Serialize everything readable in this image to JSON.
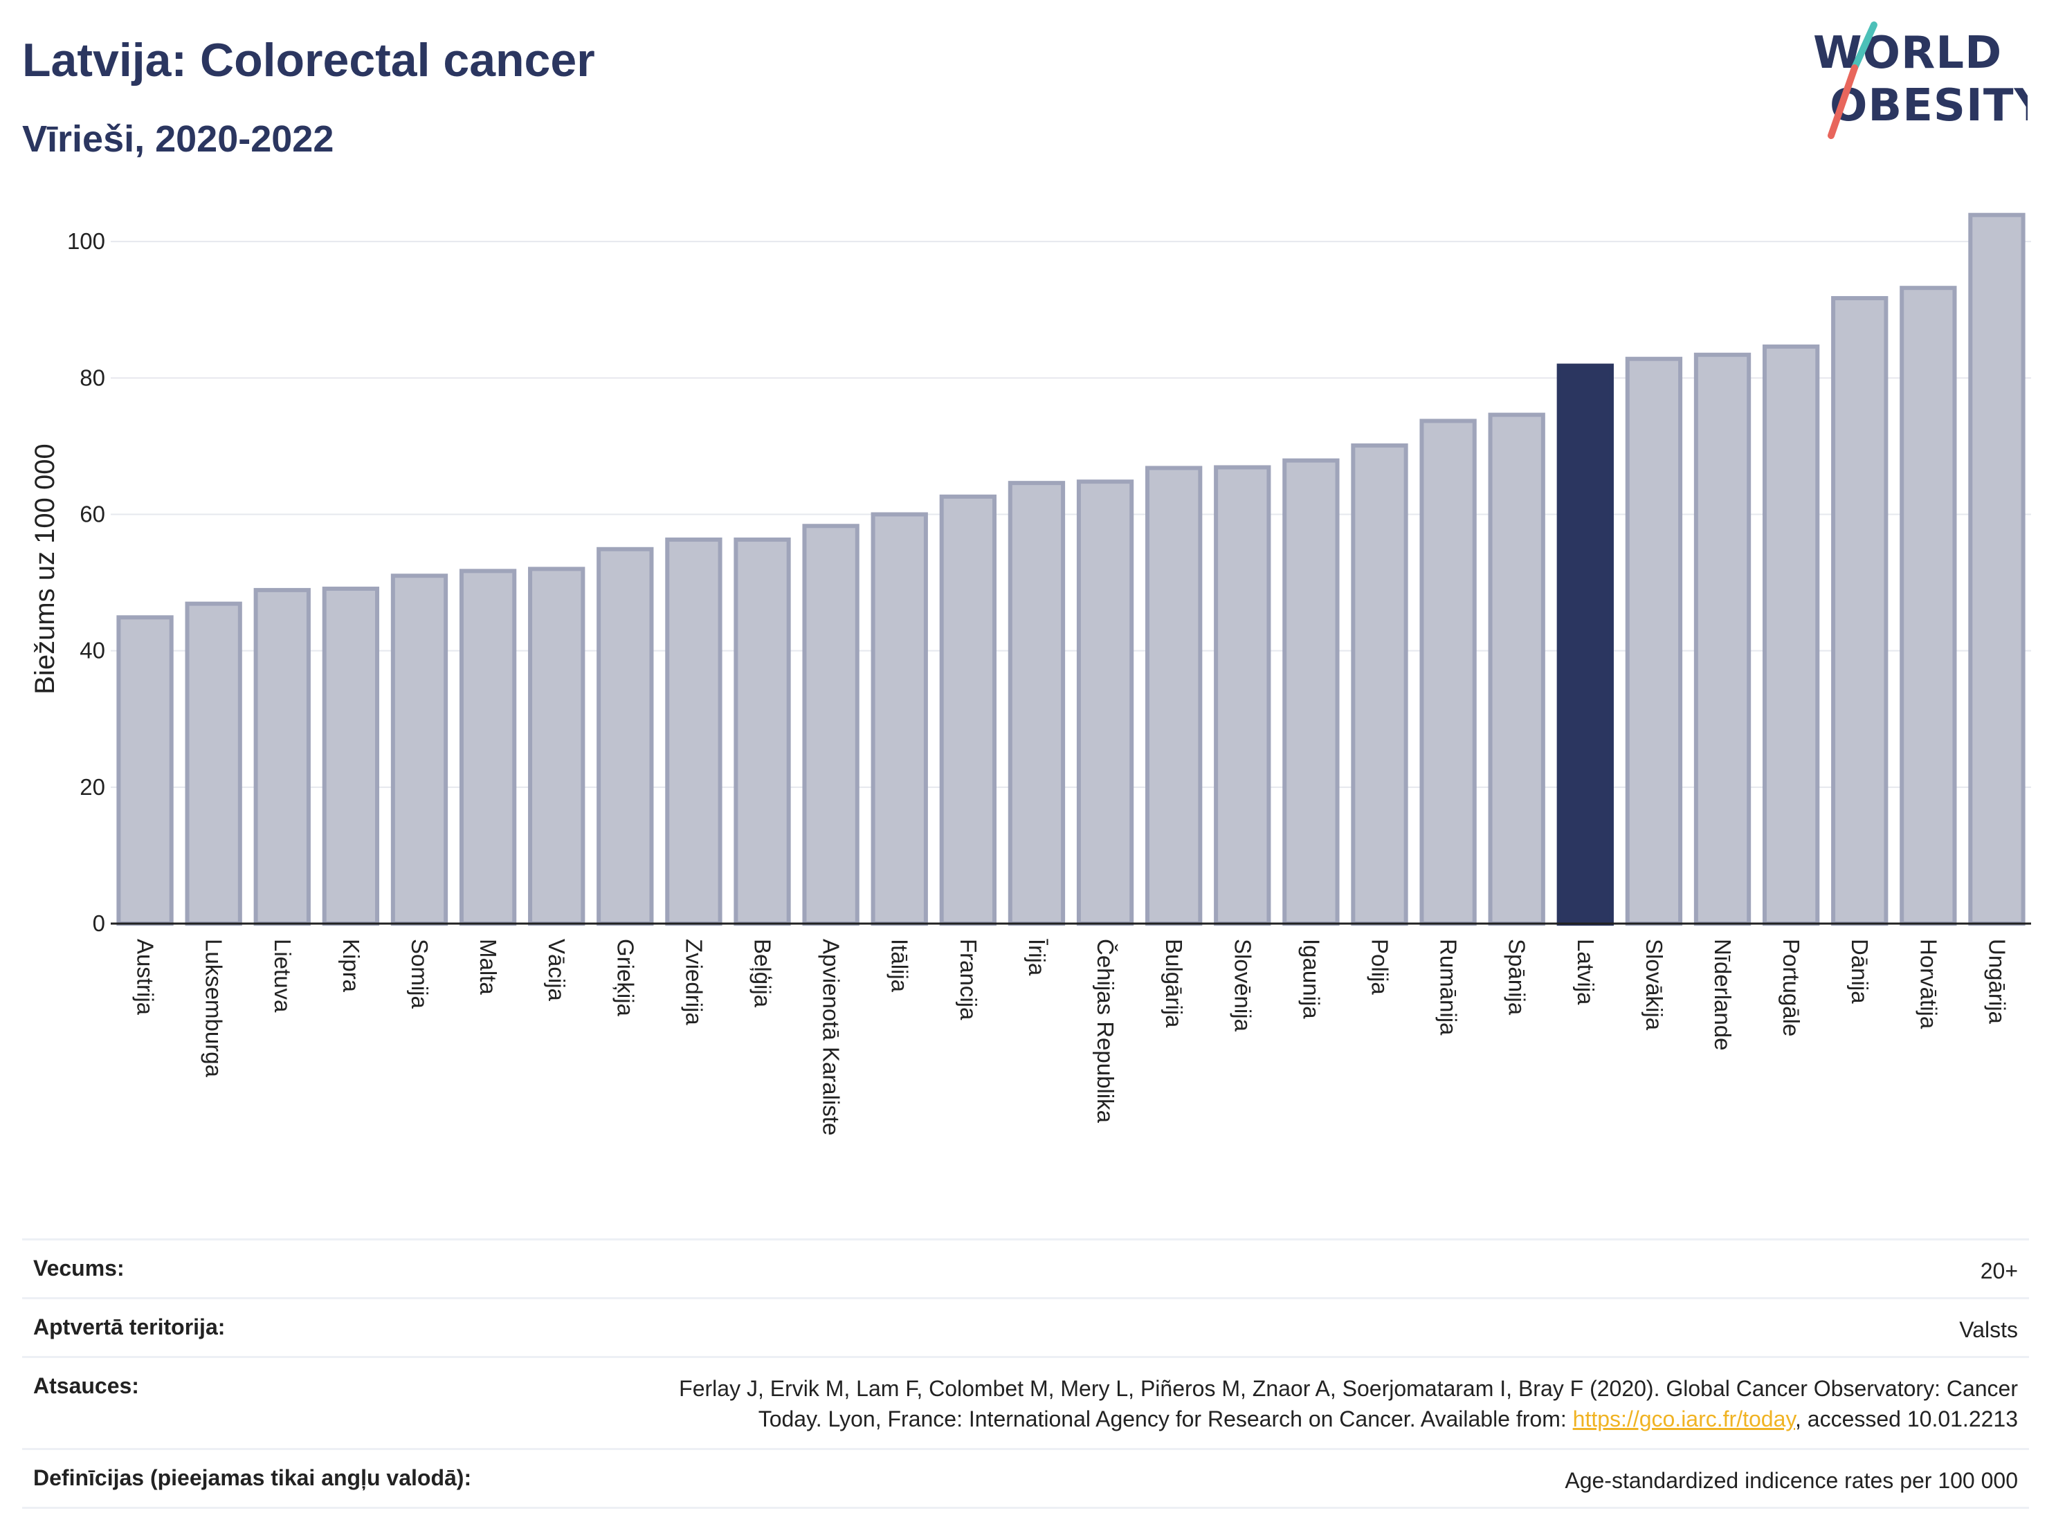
{
  "header": {
    "title": "Latvija: Colorectal cancer",
    "subtitle": "Vīrieši, 2020-2022"
  },
  "logo": {
    "line1": "WORLD",
    "line2": "OBESITY",
    "accent_colors": [
      "#4cc0b8",
      "#e8665c"
    ]
  },
  "colors": {
    "bar": "#bfc2cf",
    "bar_stroke": "#9fa4ba",
    "highlight": "#2b3660",
    "grid": "#e6e8ee"
  },
  "chart_data": {
    "type": "bar",
    "ylabel": "Biežums uz 100 000",
    "ylim": [
      0,
      106
    ],
    "yticks": [
      0,
      20,
      40,
      60,
      80,
      100
    ],
    "highlight": "Latvija",
    "categories": [
      "Austrija",
      "Luksemburga",
      "Lietuva",
      "Kipra",
      "Somija",
      "Malta",
      "Vācija",
      "Grieķija",
      "Zviedrija",
      "Beļģija",
      "Apvienotā Karaliste",
      "Itālija",
      "Francija",
      "Īrija",
      "Čehijas Republika",
      "Bulgārija",
      "Slovēnija",
      "Igaunija",
      "Polija",
      "Rumānija",
      "Spānija",
      "Latvija",
      "Slovākija",
      "Nīderlande",
      "Portugāle",
      "Dānija",
      "Horvātija",
      "Ungārija"
    ],
    "values": [
      44.9,
      46.9,
      48.9,
      49.1,
      51.0,
      51.7,
      52.0,
      54.9,
      56.3,
      56.3,
      58.3,
      60.0,
      62.6,
      64.6,
      64.8,
      66.8,
      66.9,
      67.9,
      70.1,
      73.7,
      74.6,
      81.8,
      82.8,
      83.4,
      84.6,
      91.7,
      93.2,
      103.9
    ]
  },
  "info": {
    "age_label": "Vecums:",
    "age_value": "20+",
    "territory_label": "Aptvertā teritorija:",
    "territory_value": "Valsts",
    "refs_label": "Atsauces:",
    "refs_text1": "Ferlay J, Ervik M, Lam F, Colombet M, Mery L, Piñeros M, Znaor A, Soerjomataram I, Bray F (2020). Global Cancer Observatory: Cancer",
    "refs_text2": "Today. Lyon, France: International Agency for Research on Cancer. Available from: ",
    "refs_link": "https://gco.iarc.fr/today",
    "refs_text3": ", accessed 10.01.2213",
    "defs_label": "Definīcijas (pieejamas tikai angļu valodā):",
    "defs_value": "Age-standardized indicence rates per 100 000"
  }
}
